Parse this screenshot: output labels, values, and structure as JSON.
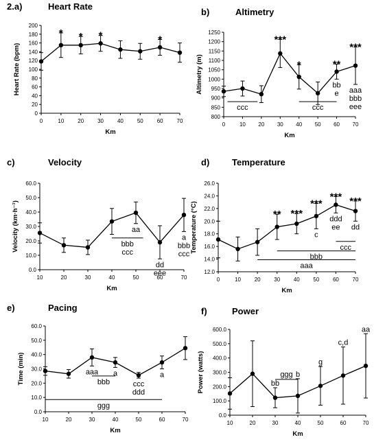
{
  "chart_data": [
    {
      "id": "heart-rate",
      "type": "line",
      "panel": "2.a)",
      "title": "Heart Rate",
      "xlabel": "Km",
      "ylabel": "Heart Rate (bpm)",
      "x": [
        0,
        10,
        20,
        30,
        40,
        50,
        60,
        70
      ],
      "xticks": [
        "0",
        "10",
        "20",
        "30",
        "40",
        "50",
        "60",
        "70"
      ],
      "ylim": [
        0,
        200
      ],
      "yticks": [
        "0",
        "20",
        "40",
        "60",
        "80",
        "100",
        "120",
        "140",
        "160",
        "180",
        "200"
      ],
      "values": [
        118,
        155,
        155,
        159,
        145,
        141,
        150,
        138
      ],
      "err": [
        20,
        28,
        20,
        18,
        20,
        18,
        18,
        22
      ],
      "annotations": [
        {
          "x": 10,
          "text": "*",
          "pos": "above"
        },
        {
          "x": 20,
          "text": "*",
          "pos": "above"
        },
        {
          "x": 30,
          "text": "*",
          "pos": "above"
        },
        {
          "x": 60,
          "text": "*",
          "pos": "above"
        }
      ],
      "bars": []
    },
    {
      "id": "altimetry",
      "type": "line",
      "panel": "b)",
      "title": "Altimetry",
      "xlabel": "Km",
      "ylabel": "Altimetry (m)",
      "x": [
        0,
        10,
        20,
        30,
        40,
        50,
        60,
        70
      ],
      "xticks": [
        "0",
        "10",
        "20",
        "30",
        "40",
        "50",
        "60",
        "70"
      ],
      "ylim": [
        800,
        1250
      ],
      "yticks": [
        "800",
        "850",
        "900",
        "950",
        "1000",
        "1050",
        "1100",
        "1150",
        "1200",
        "1250"
      ],
      "values": [
        935,
        950,
        920,
        1137,
        1012,
        925,
        1040,
        1072
      ],
      "err": [
        28,
        40,
        45,
        75,
        65,
        60,
        40,
        100
      ],
      "annotations": [
        {
          "x": 30,
          "text": "***",
          "pos": "above"
        },
        {
          "x": 40,
          "text": "*",
          "pos": "above"
        },
        {
          "x": 60,
          "text": "**",
          "pos": "above"
        },
        {
          "x": 70,
          "text": "***",
          "pos": "above"
        },
        {
          "x": 60,
          "text": "bb",
          "pos": "below",
          "line": 0
        },
        {
          "x": 60,
          "text": "e",
          "pos": "below",
          "line": 1
        },
        {
          "x": 70,
          "text": "aaa",
          "pos": "below",
          "line": 0
        },
        {
          "x": 70,
          "text": "bbb",
          "pos": "below",
          "line": 1
        },
        {
          "x": 70,
          "text": "eee",
          "pos": "below",
          "line": 2
        }
      ],
      "bars": [
        {
          "x1": 2,
          "x2": 18,
          "y": 880,
          "label": "ccc"
        },
        {
          "x1": 40,
          "x2": 60,
          "y": 880,
          "label": "ccc"
        }
      ]
    },
    {
      "id": "velocity",
      "type": "line",
      "panel": "c)",
      "title": "Velocity",
      "xlabel": "Km",
      "ylabel": "Velocity (km·h⁻¹)",
      "x": [
        10,
        20,
        30,
        40,
        50,
        60,
        70
      ],
      "xticks": [
        "10",
        "20",
        "30",
        "40",
        "50",
        "60",
        "70"
      ],
      "ylim": [
        0,
        60
      ],
      "yticks": [
        "0.0",
        "10.0",
        "20.0",
        "30.0",
        "40.0",
        "50.0",
        "60.0"
      ],
      "values": [
        25.5,
        17,
        15.5,
        33.5,
        39.5,
        19,
        38
      ],
      "err": [
        7,
        5,
        5,
        9,
        7.5,
        11.5,
        11.5
      ],
      "annotations": [
        {
          "x": 50,
          "text": "aa",
          "pos": "below",
          "line": 0
        },
        {
          "x": 60,
          "text": "dd",
          "pos": "below",
          "line": 0
        },
        {
          "x": 60,
          "text": "eee",
          "pos": "below",
          "line": 1
        },
        {
          "x": 70,
          "text": "a",
          "pos": "below",
          "line": 0
        },
        {
          "x": 70,
          "text": "bbb",
          "pos": "below",
          "line": 1
        },
        {
          "x": 70,
          "text": "ccc",
          "pos": "below",
          "line": 2
        }
      ],
      "bars": [
        {
          "x1": 40,
          "x2": 53,
          "y": 22,
          "label": "bbb ccc"
        }
      ]
    },
    {
      "id": "temperature",
      "type": "line",
      "panel": "d)",
      "title": "Temperature",
      "xlabel": "Km",
      "ylabel": "Temperature (°C)",
      "x": [
        0,
        10,
        20,
        30,
        40,
        50,
        60,
        70
      ],
      "xticks": [
        "0",
        "10",
        "20",
        "30",
        "40",
        "50",
        "60",
        "70"
      ],
      "ylim": [
        12,
        26
      ],
      "yticks": [
        "12.0",
        "14.0",
        "16.0",
        "18.0",
        "20.0",
        "22.0",
        "24.0",
        "26.0"
      ],
      "values": [
        17.1,
        15.6,
        16.7,
        19.1,
        19.6,
        20.8,
        22.6,
        21.6
      ],
      "err": [
        2.9,
        1.9,
        2.1,
        2.0,
        1.6,
        2.0,
        1.3,
        1.6
      ],
      "annotations": [
        {
          "x": 30,
          "text": "**",
          "pos": "above"
        },
        {
          "x": 40,
          "text": "***",
          "pos": "above"
        },
        {
          "x": 50,
          "text": "***",
          "pos": "above"
        },
        {
          "x": 60,
          "text": "***",
          "pos": "above"
        },
        {
          "x": 70,
          "text": "***",
          "pos": "above"
        },
        {
          "x": 50,
          "text": "c",
          "pos": "below",
          "line": 0
        },
        {
          "x": 60,
          "text": "ddd",
          "pos": "below",
          "line": 0
        },
        {
          "x": 60,
          "text": "ee",
          "pos": "below",
          "line": 1
        },
        {
          "x": 70,
          "text": "dd",
          "pos": "below",
          "line": 0
        }
      ],
      "bars": [
        {
          "x1": 60,
          "x2": 70,
          "y": 16.8,
          "label": "ccc"
        },
        {
          "x1": 30,
          "x2": 70,
          "y": 15.3,
          "label": "bbb"
        },
        {
          "x1": 20,
          "x2": 70,
          "y": 13.9,
          "label": "aaa"
        }
      ]
    },
    {
      "id": "pacing",
      "type": "line",
      "panel": "e)",
      "title": "Pacing",
      "xlabel": "Km",
      "ylabel": "Time (min)",
      "x": [
        10,
        20,
        30,
        40,
        50,
        60,
        70
      ],
      "xticks": [
        "10",
        "20",
        "30",
        "40",
        "50",
        "60",
        "70"
      ],
      "ylim": [
        0,
        60
      ],
      "yticks": [
        "0.0",
        "10.0",
        "20.0",
        "30.0",
        "40.0",
        "50.0",
        "60.0"
      ],
      "values": [
        28.5,
        26.5,
        38,
        34.5,
        25.5,
        34.5,
        44.5
      ],
      "err": [
        3,
        3,
        6,
        3.5,
        2,
        4.5,
        8
      ],
      "annotations": [
        {
          "x": 30,
          "text": "aaa",
          "pos": "below",
          "line": 0
        },
        {
          "x": 40,
          "text": "a",
          "pos": "below",
          "line": 0
        },
        {
          "x": 50,
          "text": "ccc",
          "pos": "below",
          "line": 0
        },
        {
          "x": 50,
          "text": "ddd",
          "pos": "below",
          "line": 1
        },
        {
          "x": 60,
          "text": "a",
          "pos": "below",
          "line": 0
        }
      ],
      "bars": [
        {
          "x1": 30,
          "x2": 40,
          "y": 25,
          "label": "bbb"
        },
        {
          "x1": 10,
          "x2": 60,
          "y": 8.5,
          "label": "ggg"
        }
      ]
    },
    {
      "id": "power",
      "type": "line",
      "panel": "f)",
      "title": "Power",
      "xlabel": "Km",
      "ylabel": "Power (watts)",
      "x": [
        10,
        20,
        30,
        40,
        50,
        60,
        70
      ],
      "xticks": [
        "10",
        "20",
        "30",
        "40",
        "50",
        "60",
        "70"
      ],
      "ylim": [
        0,
        600
      ],
      "yticks": [
        "0.0",
        "100.0",
        "200.0",
        "300.0",
        "400.0",
        "500.0",
        "600.0"
      ],
      "values": [
        152,
        290,
        122,
        135,
        205,
        277,
        345
      ],
      "err": [
        110,
        230,
        70,
        120,
        135,
        200,
        225
      ],
      "annotations": [
        {
          "x": 30,
          "text": "bb",
          "pos": "above"
        },
        {
          "x": 40,
          "text": "b",
          "pos": "above"
        },
        {
          "x": 50,
          "text": "g",
          "pos": "above"
        },
        {
          "x": 60,
          "text": "c,d",
          "pos": "above"
        },
        {
          "x": 70,
          "text": "aa",
          "pos": "above"
        }
      ],
      "bars": [
        {
          "x1": 30,
          "x2": 40,
          "y": 250,
          "label": "ggg",
          "labelPos": "above"
        }
      ]
    }
  ]
}
